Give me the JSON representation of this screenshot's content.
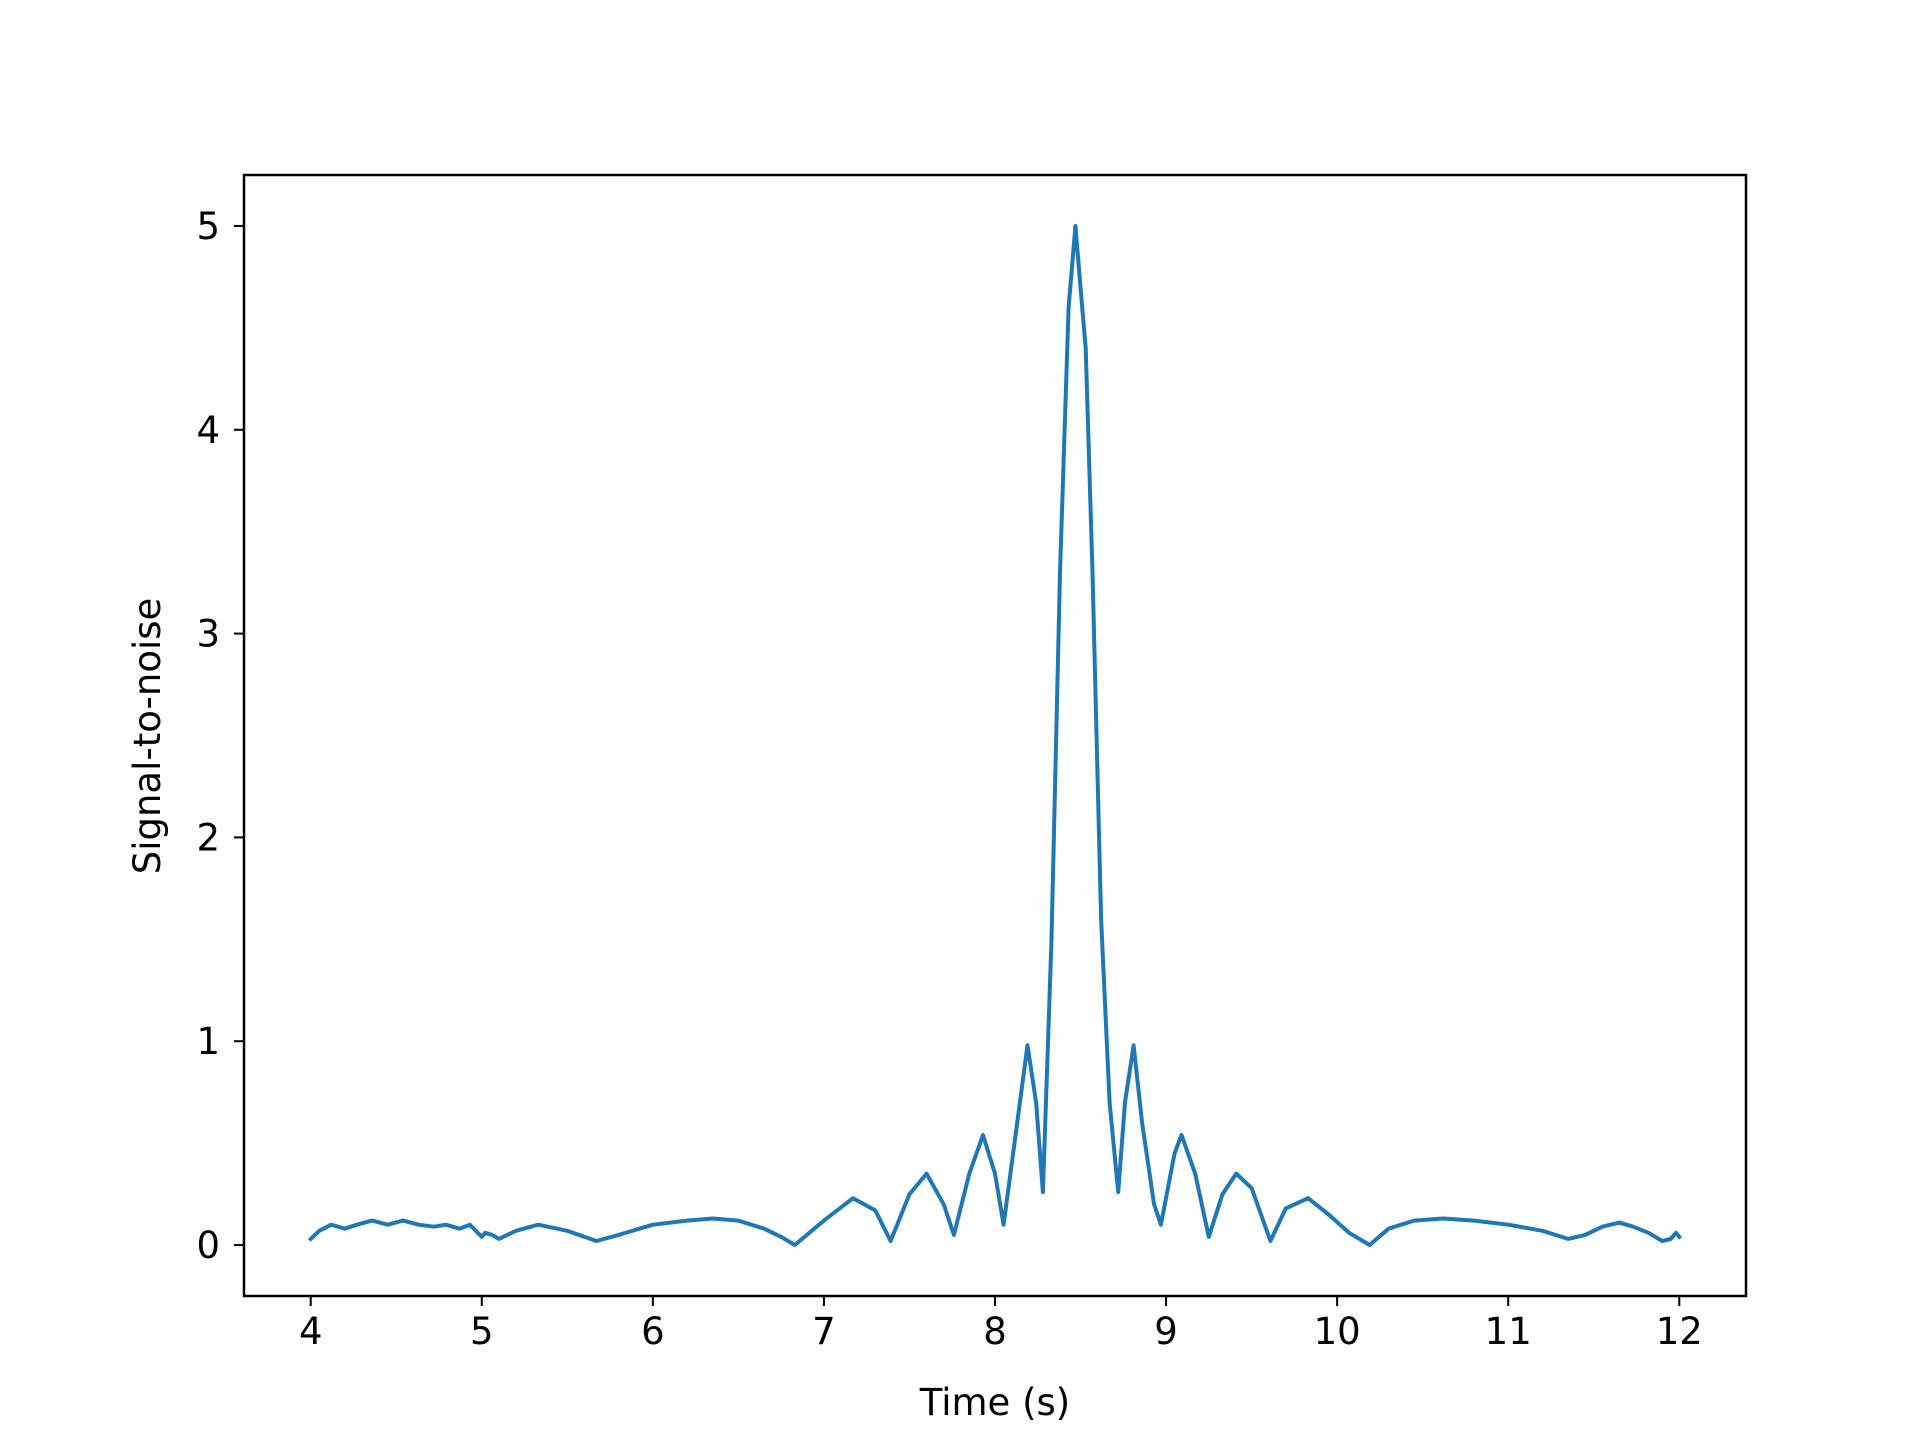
{
  "chart_data": {
    "type": "line",
    "title": "",
    "xlabel": "Time (s)",
    "ylabel": "Signal-to-noise",
    "xlim": [
      3.61,
      12.39
    ],
    "ylim": [
      -0.25,
      5.25
    ],
    "xticks": [
      4,
      5,
      6,
      7,
      8,
      9,
      10,
      11,
      12
    ],
    "yticks": [
      0,
      1,
      2,
      3,
      4,
      5
    ],
    "grid": false,
    "legend": "none",
    "line_color": "#1f77b4",
    "series": [
      {
        "x": [
          4.0,
          4.05,
          4.12,
          4.2,
          4.27,
          4.36,
          4.45,
          4.54,
          4.63,
          4.72,
          4.79,
          4.87,
          4.93,
          5.0,
          5.02,
          5.06,
          5.1,
          5.2,
          5.33,
          5.5,
          5.67,
          5.8,
          6.0,
          6.2,
          6.35,
          6.5,
          6.65,
          6.75,
          6.83,
          7.0,
          7.17,
          7.3,
          7.39,
          7.5,
          7.6,
          7.7,
          7.76,
          7.85,
          7.93,
          8.0,
          8.05,
          8.13,
          8.19,
          8.24,
          8.28,
          8.33,
          8.38,
          8.43,
          8.47,
          8.51,
          8.53,
          8.57,
          8.62,
          8.67,
          8.72,
          8.76,
          8.81,
          8.86,
          8.93,
          8.97,
          9.05,
          9.09,
          9.17,
          9.25,
          9.33,
          9.41,
          9.5,
          9.61,
          9.7,
          9.83,
          9.95,
          10.07,
          10.19,
          10.3,
          10.45,
          10.62,
          10.8,
          11.0,
          11.2,
          11.35,
          11.45,
          11.55,
          11.65,
          11.73,
          11.82,
          11.9,
          11.95,
          11.98,
          12.0
        ],
        "y": [
          0.03,
          0.07,
          0.1,
          0.08,
          0.1,
          0.12,
          0.1,
          0.12,
          0.1,
          0.09,
          0.1,
          0.08,
          0.1,
          0.04,
          0.06,
          0.05,
          0.03,
          0.07,
          0.1,
          0.07,
          0.02,
          0.05,
          0.1,
          0.12,
          0.13,
          0.12,
          0.08,
          0.04,
          0.0,
          0.12,
          0.23,
          0.17,
          0.02,
          0.25,
          0.35,
          0.2,
          0.05,
          0.35,
          0.54,
          0.35,
          0.1,
          0.6,
          0.98,
          0.7,
          0.26,
          1.5,
          3.3,
          4.6,
          5.0,
          4.6,
          4.4,
          3.3,
          1.6,
          0.7,
          0.26,
          0.7,
          0.98,
          0.6,
          0.2,
          0.1,
          0.45,
          0.54,
          0.35,
          0.04,
          0.25,
          0.35,
          0.28,
          0.02,
          0.18,
          0.23,
          0.15,
          0.06,
          0.0,
          0.08,
          0.12,
          0.13,
          0.12,
          0.1,
          0.07,
          0.03,
          0.05,
          0.09,
          0.11,
          0.09,
          0.06,
          0.02,
          0.03,
          0.06,
          0.04
        ]
      }
    ]
  }
}
